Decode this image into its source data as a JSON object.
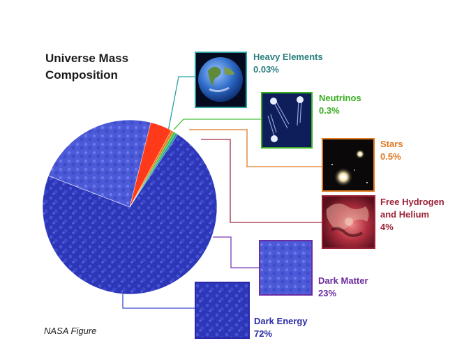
{
  "title_line1": "Universe Mass",
  "title_line2": "Composition",
  "credit": "NASA Figure",
  "chart_data": {
    "type": "pie",
    "title": "Universe Mass Composition",
    "slices": [
      {
        "name": "Dark Energy",
        "value": 72,
        "label": "72%",
        "color": "#3a3fc4"
      },
      {
        "name": "Dark Matter",
        "value": 23,
        "label": "23%",
        "color": "#5262e0"
      },
      {
        "name": "Free Hydrogen and Helium",
        "value": 4,
        "label": "4%",
        "color": "#ff3a1a"
      },
      {
        "name": "Stars",
        "value": 0.5,
        "label": "0.5%",
        "color": "#f07a1e"
      },
      {
        "name": "Neutrinos",
        "value": 0.3,
        "label": "0.3%",
        "color": "#44c33c"
      },
      {
        "name": "Heavy Elements",
        "value": 0.03,
        "label": "0.03%",
        "color": "#2aa0a0"
      }
    ]
  },
  "labels": {
    "heavy": {
      "name": "Heavy Elements",
      "pct": "0.03%",
      "color": "#2a7f7f"
    },
    "neutrinos": {
      "name": "Neutrinos",
      "pct": "0.3%",
      "color": "#3aae22"
    },
    "stars": {
      "name": "Stars",
      "pct": "0.5%",
      "color": "#e07820"
    },
    "hydrogen": {
      "name1": "Free Hydrogen",
      "name2": "and Helium",
      "pct": "4%",
      "color": "#9a2236"
    },
    "dark_matter": {
      "name": "Dark Matter",
      "pct": "23%",
      "color": "#6a2aa0"
    },
    "dark_energy": {
      "name": "Dark Energy",
      "pct": "72%",
      "color": "#2a2aa8"
    }
  },
  "image_icons": [
    "earth-image",
    "neutrinos-image",
    "stars-image",
    "hydrogen-helium-image",
    "dark-matter-image",
    "dark-energy-image"
  ]
}
